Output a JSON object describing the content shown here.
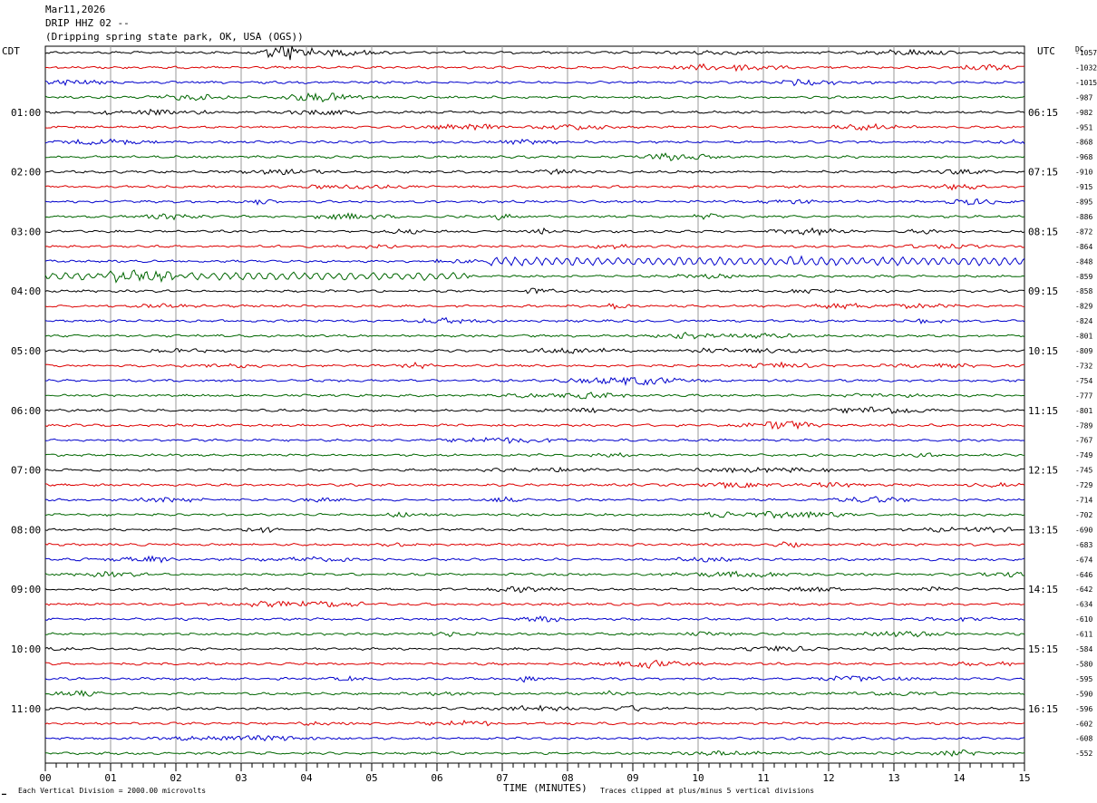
{
  "header": {
    "date": "Mar11,2026",
    "station": "DRIP HHZ 02 --",
    "location": "(Dripping spring state park, OK, USA (OGS))"
  },
  "left_tz": "CDT",
  "right_tz": "UTC",
  "dc_label": "DC",
  "footer": {
    "scale_note": "Each Vertical Division = 2000.00 microvolts",
    "xlabel": "TIME (MINUTES)",
    "clip_note": "Traces clipped at plus/minus 5 vertical divisions"
  },
  "colors": {
    "trace_cycle": [
      "#000000",
      "#dd0000",
      "#0000cc",
      "#006600"
    ],
    "grid": "#9a9a9a"
  },
  "chart_data": {
    "type": "line",
    "title": "DRIP HHZ 02 --",
    "xlabel": "TIME (MINUTES)",
    "x_range": [
      0,
      15
    ],
    "x_ticks": [
      "00",
      "01",
      "02",
      "03",
      "04",
      "05",
      "06",
      "07",
      "08",
      "09",
      "10",
      "11",
      "12",
      "13",
      "14",
      "15"
    ],
    "left_hour_labels": [
      "01:00",
      "02:00",
      "03:00",
      "04:00",
      "05:00",
      "06:00",
      "07:00",
      "08:00",
      "09:00",
      "10:00",
      "11:00"
    ],
    "right_hour_labels": [
      "06:15",
      "07:15",
      "08:15",
      "09:15",
      "10:15",
      "11:15",
      "12:15",
      "13:15",
      "14:15",
      "15:15",
      "16:15"
    ],
    "dc_offsets": [
      "-1057",
      "-1032",
      "-1015",
      "-987",
      "-982",
      "-951",
      "-868",
      "-968",
      "-910",
      "-915",
      "-895",
      "-886",
      "-872",
      "-864",
      "-848",
      "-859",
      "-858",
      "-829",
      "-824",
      "-801",
      "-809",
      "-732",
      "-754",
      "-777",
      "-801",
      "-789",
      "-767",
      "-749",
      "-745",
      "-729",
      "-714",
      "-702",
      "-690",
      "-683",
      "-674",
      "-646",
      "-642",
      "-634",
      "-610",
      "-611",
      "-584",
      "-580",
      "-595",
      "-590",
      "-596",
      "-602",
      "-608",
      "-552"
    ],
    "events": [
      {
        "row": 0,
        "minute": 3.75,
        "note": "large event, clipped"
      },
      {
        "row": 5,
        "minute": 12.6,
        "note": "burst"
      },
      {
        "row": 14,
        "minute": 10,
        "note": "long-period oscillation"
      },
      {
        "row": 15,
        "minute": 3,
        "note": "long-period oscillation"
      }
    ]
  }
}
